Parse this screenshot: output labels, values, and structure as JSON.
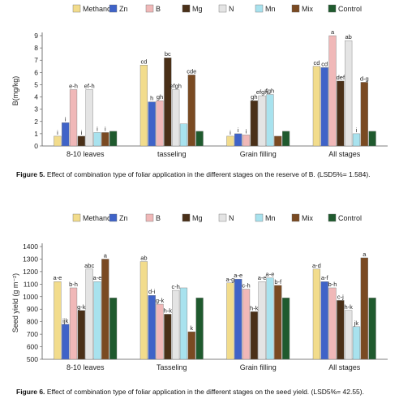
{
  "figures": [
    {
      "caption_label": "Figure 5.",
      "caption_text": "Effect of combination type of foliar application in the different stages on the reserve of B. (LSD5%= 1.584)."
    },
    {
      "caption_label": "Figure 6.",
      "caption_text": "Effect of combination type of foliar application in the different stages on the seed yield. (LSD5%= 42.55)."
    }
  ],
  "chart_data": [
    {
      "type": "bar",
      "title": "",
      "ylabel": "B(mg/kg)",
      "xlabel": "",
      "ylim": [
        0,
        9
      ],
      "yticks": [
        "0",
        "1",
        "2",
        "3",
        "4",
        "5",
        "6",
        "7",
        "8",
        "9"
      ],
      "categories": [
        "8-10 leaves",
        "tasseling",
        "Grain filling",
        "All stages"
      ],
      "legend_position": "top",
      "grid": false,
      "series": [
        {
          "name": "Methanol",
          "color": "#f2dc8c",
          "values": [
            0.8,
            6.6,
            0.8,
            6.5
          ],
          "labels": [
            "i",
            "cd",
            "i",
            "cd"
          ]
        },
        {
          "name": "Zn",
          "color": "#3f63c8",
          "values": [
            1.9,
            3.6,
            1.0,
            6.4
          ],
          "labels": [
            "i",
            "h",
            "i",
            "cd"
          ]
        },
        {
          "name": "B",
          "color": "#f0b8b8",
          "values": [
            4.6,
            3.7,
            0.9,
            9.0
          ],
          "labels": [
            "e-h",
            "gh",
            "i",
            "a"
          ]
        },
        {
          "name": "Mg",
          "color": "#4a3018",
          "values": [
            0.8,
            7.2,
            3.7,
            5.3
          ],
          "labels": [
            "i",
            "bc",
            "gh",
            "def"
          ]
        },
        {
          "name": "N",
          "color": "#e4e4e4",
          "values": [
            4.6,
            4.6,
            4.1,
            8.6
          ],
          "labels": [
            "ef-h",
            "efgh",
            "efgh",
            "ab"
          ]
        },
        {
          "name": "Mn",
          "color": "#a8e2ee",
          "values": [
            1.1,
            1.8,
            4.2,
            1.0
          ],
          "labels": [
            "i",
            "",
            "fgh",
            "i"
          ]
        },
        {
          "name": "Mix",
          "color": "#7a4a22",
          "values": [
            1.1,
            5.8,
            0.8,
            5.2
          ],
          "labels": [
            "i",
            "cde",
            "",
            "d-g"
          ]
        },
        {
          "name": "Control",
          "color": "#1f5a2e",
          "values": [
            1.2,
            1.2,
            1.2,
            1.2
          ],
          "labels": [
            "",
            "",
            "",
            ""
          ]
        }
      ]
    },
    {
      "type": "bar",
      "title": "",
      "ylabel": "Seed yield (g m⁻²)",
      "xlabel": "",
      "ylim": [
        500,
        1400
      ],
      "yticks": [
        "500",
        "600",
        "700",
        "800",
        "900",
        "1000",
        "1100",
        "1200",
        "1300",
        "1400"
      ],
      "categories": [
        "8-10 leaves",
        "Tasseling",
        "Grain filling",
        "All stages"
      ],
      "legend_position": "top",
      "grid": false,
      "series": [
        {
          "name": "Methanol",
          "color": "#f2dc8c",
          "values": [
            1120,
            1280,
            1110,
            1220
          ],
          "labels": [
            "a-e",
            "ab",
            "a-g",
            "a-d"
          ]
        },
        {
          "name": "Zn",
          "color": "#3f63c8",
          "values": [
            780,
            1010,
            1140,
            1120
          ],
          "labels": [
            "ijk",
            "d-i",
            "a-e",
            "a-f"
          ]
        },
        {
          "name": "B",
          "color": "#f0b8b8",
          "values": [
            1070,
            940,
            1060,
            1070
          ],
          "labels": [
            "b-h",
            "g-k",
            "c-h",
            "b-h"
          ]
        },
        {
          "name": "Mg",
          "color": "#4a3018",
          "values": [
            890,
            860,
            880,
            970
          ],
          "labels": [
            "g-k",
            "h-k",
            "h-k",
            "c-j"
          ]
        },
        {
          "name": "N",
          "color": "#e4e4e4",
          "values": [
            1220,
            1050,
            1120,
            890
          ],
          "labels": [
            "abc",
            "c-h",
            "a-e",
            "h-k"
          ]
        },
        {
          "name": "Mn",
          "color": "#a8e2ee",
          "values": [
            1120,
            1070,
            1150,
            760
          ],
          "labels": [
            "a-e",
            "",
            "a-e",
            "jk"
          ]
        },
        {
          "name": "Mix",
          "color": "#7a4a22",
          "values": [
            1300,
            720,
            1090,
            1310
          ],
          "labels": [
            "a",
            "k",
            "b-f",
            "a"
          ]
        },
        {
          "name": "Control",
          "color": "#1f5a2e",
          "values": [
            990,
            990,
            990,
            990
          ],
          "labels": [
            "",
            "",
            "",
            ""
          ]
        }
      ]
    }
  ]
}
